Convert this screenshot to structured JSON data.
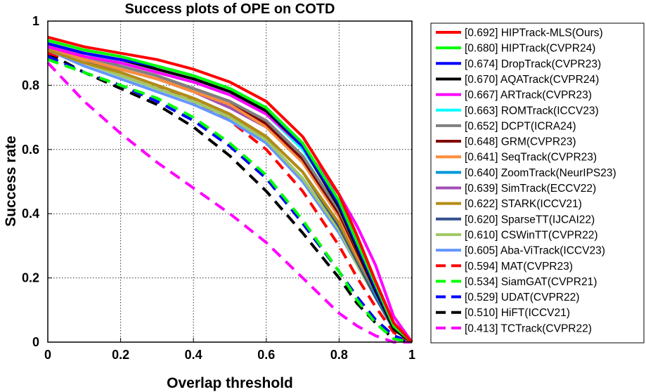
{
  "chart_data": {
    "type": "line",
    "title": "Success plots of OPE on COTD",
    "xlabel": "Overlap threshold",
    "ylabel": "Success rate",
    "xlim": [
      0,
      1
    ],
    "ylim": [
      0,
      1
    ],
    "xticks": [
      0,
      0.2,
      0.4,
      0.6,
      0.8,
      1
    ],
    "xtick_labels": [
      "0",
      "0.2",
      "0.4",
      "0.6",
      "0.8",
      "1"
    ],
    "yticks": [
      0,
      0.2,
      0.4,
      0.6,
      0.8,
      1
    ],
    "ytick_labels": [
      "0",
      "0.2",
      "0.4",
      "0.6",
      "0.8",
      "1"
    ],
    "grid": true,
    "legend_position": "outside-right",
    "x": [
      0,
      0.1,
      0.2,
      0.3,
      0.4,
      0.5,
      0.6,
      0.7,
      0.8,
      0.85,
      0.9,
      0.95,
      1.0
    ],
    "series": [
      {
        "name": "[0.692] HIPTrack-MLS(Ours)",
        "color": "#ff0000",
        "dash": "solid",
        "values": [
          0.95,
          0.92,
          0.9,
          0.88,
          0.85,
          0.81,
          0.75,
          0.64,
          0.46,
          0.33,
          0.19,
          0.06,
          0.0
        ]
      },
      {
        "name": "[0.680] HIPTrack(CVPR24)",
        "color": "#00ff00",
        "dash": "solid",
        "values": [
          0.94,
          0.91,
          0.89,
          0.86,
          0.83,
          0.79,
          0.73,
          0.62,
          0.44,
          0.31,
          0.18,
          0.05,
          0.0
        ]
      },
      {
        "name": "[0.674] DropTrack(CVPR23)",
        "color": "#0000ff",
        "dash": "solid",
        "values": [
          0.93,
          0.9,
          0.88,
          0.86,
          0.83,
          0.79,
          0.73,
          0.61,
          0.43,
          0.3,
          0.17,
          0.05,
          0.0
        ]
      },
      {
        "name": "[0.670] AQATrack(CVPR24)",
        "color": "#000000",
        "dash": "solid",
        "values": [
          0.93,
          0.9,
          0.88,
          0.85,
          0.82,
          0.78,
          0.72,
          0.61,
          0.42,
          0.29,
          0.16,
          0.04,
          0.0
        ]
      },
      {
        "name": "[0.667] ARTrack(CVPR23)",
        "color": "#ff00ff",
        "dash": "solid",
        "values": [
          0.92,
          0.89,
          0.87,
          0.84,
          0.81,
          0.77,
          0.71,
          0.61,
          0.46,
          0.36,
          0.24,
          0.08,
          0.0
        ]
      },
      {
        "name": "[0.663] ROMTrack(ICCV23)",
        "color": "#00ffff",
        "dash": "solid",
        "values": [
          0.93,
          0.9,
          0.87,
          0.84,
          0.81,
          0.77,
          0.71,
          0.6,
          0.43,
          0.31,
          0.19,
          0.06,
          0.0
        ]
      },
      {
        "name": "[0.652] DCPT(ICRA24)",
        "color": "#808080",
        "dash": "solid",
        "values": [
          0.93,
          0.89,
          0.86,
          0.83,
          0.79,
          0.75,
          0.69,
          0.58,
          0.41,
          0.29,
          0.17,
          0.05,
          0.0
        ]
      },
      {
        "name": "[0.648] GRM(CVPR23)",
        "color": "#800000",
        "dash": "solid",
        "values": [
          0.92,
          0.89,
          0.86,
          0.83,
          0.79,
          0.75,
          0.68,
          0.57,
          0.4,
          0.28,
          0.16,
          0.05,
          0.0
        ]
      },
      {
        "name": "[0.641] SeqTrack(CVPR23)",
        "color": "#ff8c3c",
        "dash": "solid",
        "values": [
          0.92,
          0.88,
          0.85,
          0.82,
          0.78,
          0.74,
          0.67,
          0.56,
          0.39,
          0.27,
          0.16,
          0.04,
          0.0
        ]
      },
      {
        "name": "[0.640] ZoomTrack(NeurIPS23)",
        "color": "#0096dc",
        "dash": "solid",
        "values": [
          0.92,
          0.88,
          0.85,
          0.82,
          0.78,
          0.74,
          0.67,
          0.56,
          0.39,
          0.27,
          0.15,
          0.04,
          0.0
        ]
      },
      {
        "name": "[0.639] SimTrack(ECCV22)",
        "color": "#a050b4",
        "dash": "solid",
        "values": [
          0.92,
          0.88,
          0.85,
          0.82,
          0.78,
          0.73,
          0.67,
          0.56,
          0.39,
          0.27,
          0.15,
          0.04,
          0.0
        ]
      },
      {
        "name": "[0.622] STARK(ICCV21)",
        "color": "#b48c14",
        "dash": "solid",
        "values": [
          0.91,
          0.87,
          0.84,
          0.8,
          0.76,
          0.71,
          0.64,
          0.53,
          0.37,
          0.26,
          0.15,
          0.04,
          0.0
        ]
      },
      {
        "name": "[0.620] SparseTT(IJCAI22)",
        "color": "#32508c",
        "dash": "solid",
        "values": [
          0.92,
          0.88,
          0.84,
          0.8,
          0.76,
          0.71,
          0.64,
          0.53,
          0.36,
          0.25,
          0.14,
          0.04,
          0.0
        ]
      },
      {
        "name": "[0.610] CSWinTT(CVPR22)",
        "color": "#a0c864",
        "dash": "solid",
        "values": [
          0.91,
          0.87,
          0.83,
          0.79,
          0.75,
          0.7,
          0.63,
          0.51,
          0.35,
          0.24,
          0.14,
          0.04,
          0.0
        ]
      },
      {
        "name": "[0.605] Aba-ViTrack(ICCV23)",
        "color": "#6496ff",
        "dash": "solid",
        "values": [
          0.91,
          0.86,
          0.82,
          0.78,
          0.74,
          0.69,
          0.62,
          0.5,
          0.34,
          0.24,
          0.14,
          0.04,
          0.0
        ]
      },
      {
        "name": "[0.594] MAT(CVPR23)",
        "color": "#ff0000",
        "dash": "dashed",
        "values": [
          0.9,
          0.87,
          0.84,
          0.8,
          0.75,
          0.69,
          0.6,
          0.47,
          0.3,
          0.2,
          0.11,
          0.03,
          0.0
        ]
      },
      {
        "name": "[0.534] SiamGAT(CVPR21)",
        "color": "#00ff00",
        "dash": "dashed",
        "values": [
          0.88,
          0.84,
          0.8,
          0.76,
          0.7,
          0.62,
          0.52,
          0.38,
          0.22,
          0.13,
          0.06,
          0.01,
          0.0
        ]
      },
      {
        "name": "[0.529] UDAT(CVPR22)",
        "color": "#0000ff",
        "dash": "dashed",
        "values": [
          0.89,
          0.84,
          0.8,
          0.75,
          0.69,
          0.61,
          0.51,
          0.37,
          0.22,
          0.14,
          0.07,
          0.02,
          0.0
        ]
      },
      {
        "name": "[0.510] HiFT(ICCV21)",
        "color": "#000000",
        "dash": "dashed",
        "values": [
          0.9,
          0.84,
          0.79,
          0.74,
          0.67,
          0.58,
          0.47,
          0.34,
          0.2,
          0.12,
          0.06,
          0.01,
          0.0
        ]
      },
      {
        "name": "[0.413] TCTrack(CVPR22)",
        "color": "#ff00ff",
        "dash": "dashed",
        "values": [
          0.87,
          0.75,
          0.65,
          0.56,
          0.48,
          0.4,
          0.31,
          0.2,
          0.09,
          0.05,
          0.02,
          0.0,
          0.0
        ]
      }
    ]
  }
}
